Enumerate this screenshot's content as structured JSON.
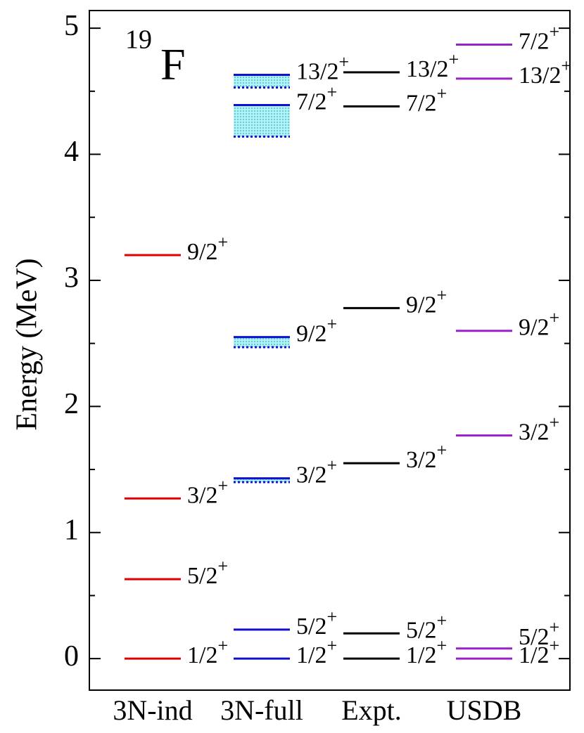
{
  "chart_data": {
    "type": "level-scheme",
    "nucleus": {
      "mass": "19",
      "symbol": "F"
    },
    "ylabel": "Energy (MeV)",
    "ylim": [
      -0.25,
      5.14
    ],
    "yticks": [
      0,
      1,
      2,
      3,
      4,
      5
    ],
    "yminor_ticks": [
      0.5,
      1.5,
      2.5,
      3.5,
      4.5
    ],
    "columns": [
      {
        "name": "3N-ind",
        "color": "#e00000",
        "levels": [
          {
            "energy": 0,
            "label": "1/2",
            "parity": "+"
          },
          {
            "energy": 0.63,
            "label": "5/2",
            "parity": "+"
          },
          {
            "energy": 1.27,
            "label": "3/2",
            "parity": "+"
          },
          {
            "energy": 3.2,
            "label": "9/2",
            "parity": "+"
          }
        ]
      },
      {
        "name": "3N-full",
        "color": "#1010d0",
        "levels": [
          {
            "energy": 0,
            "label": "1/2",
            "parity": "+"
          },
          {
            "energy": 0.23,
            "label": "5/2",
            "parity": "+"
          },
          {
            "energy": 1.43,
            "lower": 1.4,
            "label": "3/2",
            "parity": "+"
          },
          {
            "energy": 2.55,
            "lower": 2.47,
            "label": "9/2",
            "parity": "+"
          },
          {
            "energy": 4.39,
            "lower": 4.14,
            "label": "7/2",
            "parity": "+"
          },
          {
            "energy": 4.63,
            "lower": 4.53,
            "label": "13/2",
            "parity": "+"
          }
        ]
      },
      {
        "name": "Expt.",
        "color": "#000000",
        "levels": [
          {
            "energy": 0,
            "label": "1/2",
            "parity": "+"
          },
          {
            "energy": 0.2,
            "label": "5/2",
            "parity": "+"
          },
          {
            "energy": 1.55,
            "label": "3/2",
            "parity": "+"
          },
          {
            "energy": 2.78,
            "label": "9/2",
            "parity": "+"
          },
          {
            "energy": 4.38,
            "label": "7/2",
            "parity": "+"
          },
          {
            "energy": 4.65,
            "label": "13/2",
            "parity": "+"
          }
        ]
      },
      {
        "name": "USDB",
        "color": "#9a20c8",
        "levels": [
          {
            "energy": 0,
            "label": "1/2",
            "parity": "+"
          },
          {
            "energy": 0.08,
            "label": "5/2",
            "parity": "+"
          },
          {
            "energy": 1.77,
            "label": "3/2",
            "parity": "+"
          },
          {
            "energy": 2.6,
            "label": "9/2",
            "parity": "+"
          },
          {
            "energy": 4.6,
            "label": "13/2",
            "parity": "+"
          },
          {
            "energy": 4.87,
            "label": "7/2",
            "parity": "+"
          }
        ]
      }
    ]
  }
}
